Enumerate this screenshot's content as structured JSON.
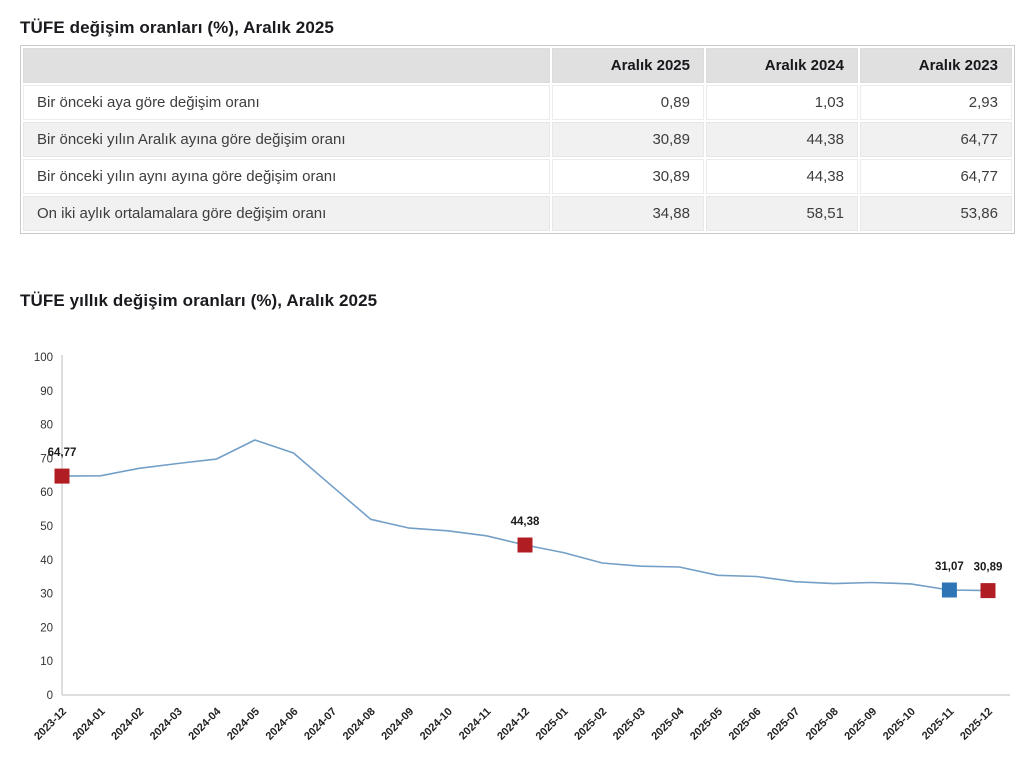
{
  "titles": {
    "table_title": "TÜFE değişim oranları (%), Aralık 2025",
    "chart_title": "TÜFE yıllık değişim oranları (%), Aralık 2025"
  },
  "table": {
    "header": [
      "",
      "Aralık 2025",
      "Aralık 2024",
      "Aralık 2023"
    ],
    "rows": [
      {
        "label": "Bir önceki aya göre değişim oranı",
        "values": [
          "0,89",
          "1,03",
          "2,93"
        ]
      },
      {
        "label": "Bir önceki yılın Aralık ayına göre değişim oranı",
        "values": [
          "30,89",
          "44,38",
          "64,77"
        ]
      },
      {
        "label": "Bir önceki yılın aynı ayına göre değişim oranı",
        "values": [
          "30,89",
          "44,38",
          "64,77"
        ]
      },
      {
        "label": "On iki aylık ortalamalara göre değişim oranı",
        "values": [
          "34,88",
          "58,51",
          "53,86"
        ]
      }
    ]
  },
  "chart_data": {
    "type": "line",
    "title": "TÜFE yıllık değişim oranları (%), Aralık 2025",
    "x": [
      "2023-12",
      "2024-01",
      "2024-02",
      "2024-03",
      "2024-04",
      "2024-05",
      "2024-06",
      "2024-07",
      "2024-08",
      "2024-09",
      "2024-10",
      "2024-11",
      "2024-12",
      "2025-01",
      "2025-02",
      "2025-03",
      "2025-04",
      "2025-05",
      "2025-06",
      "2025-07",
      "2025-08",
      "2025-09",
      "2025-10",
      "2025-11",
      "2025-12"
    ],
    "values": [
      64.77,
      64.86,
      67.07,
      68.5,
      69.8,
      75.45,
      71.6,
      61.78,
      51.97,
      49.38,
      48.58,
      47.09,
      44.38,
      42.12,
      39.05,
      38.1,
      37.86,
      35.41,
      35.05,
      33.52,
      32.95,
      33.29,
      32.87,
      31.07,
      30.89
    ],
    "ylim": [
      0,
      100
    ],
    "y_ticks": [
      0,
      10,
      20,
      30,
      40,
      50,
      60,
      70,
      80,
      90,
      100
    ],
    "grid": false,
    "legend": false,
    "line_color": "#739fc7",
    "axis_color": "#c9c9c9",
    "tick_color": "#333333",
    "label_color": "#1a1a1a",
    "highlights": [
      {
        "month": "2023-12",
        "value": 64.77,
        "label": "64,77",
        "color": "#b01e24"
      },
      {
        "month": "2024-12",
        "value": 44.38,
        "label": "44,38",
        "color": "#b01e24"
      },
      {
        "month": "2025-11",
        "value": 31.07,
        "label": "31,07",
        "color": "#2e75b6"
      },
      {
        "month": "2025-12",
        "value": 30.89,
        "label": "30,89",
        "color": "#b01e24"
      }
    ]
  }
}
